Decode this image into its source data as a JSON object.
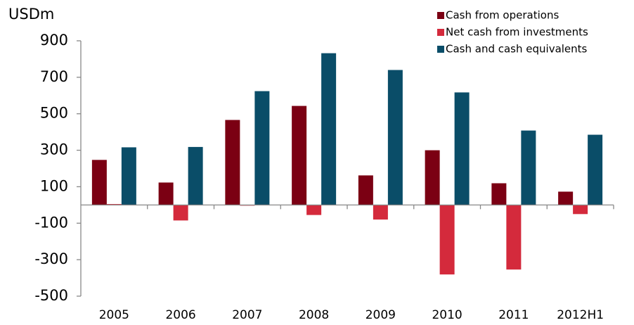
{
  "chart_data": {
    "type": "bar",
    "y_axis_label": "USDm",
    "categories": [
      "2005",
      "2006",
      "2007",
      "2008",
      "2009",
      "2010",
      "2011",
      "2012H1"
    ],
    "series": [
      {
        "name": "Cash from operations",
        "color": "#7b0013",
        "values": [
          247,
          123,
          466,
          543,
          162,
          300,
          119,
          73
        ]
      },
      {
        "name": "Net cash from investments",
        "color": "#d42a3c",
        "values": [
          5,
          -85,
          -3,
          -55,
          -80,
          -381,
          -354,
          -50
        ]
      },
      {
        "name": "Cash and cash equivalents",
        "color": "#0a4d68",
        "values": [
          316,
          318,
          624,
          832,
          740,
          617,
          408,
          385
        ]
      }
    ],
    "ylim": [
      -500,
      900
    ],
    "yticks": [
      900,
      700,
      500,
      300,
      100,
      -100,
      -300,
      -500
    ],
    "grid": false,
    "legend": "top-right"
  }
}
